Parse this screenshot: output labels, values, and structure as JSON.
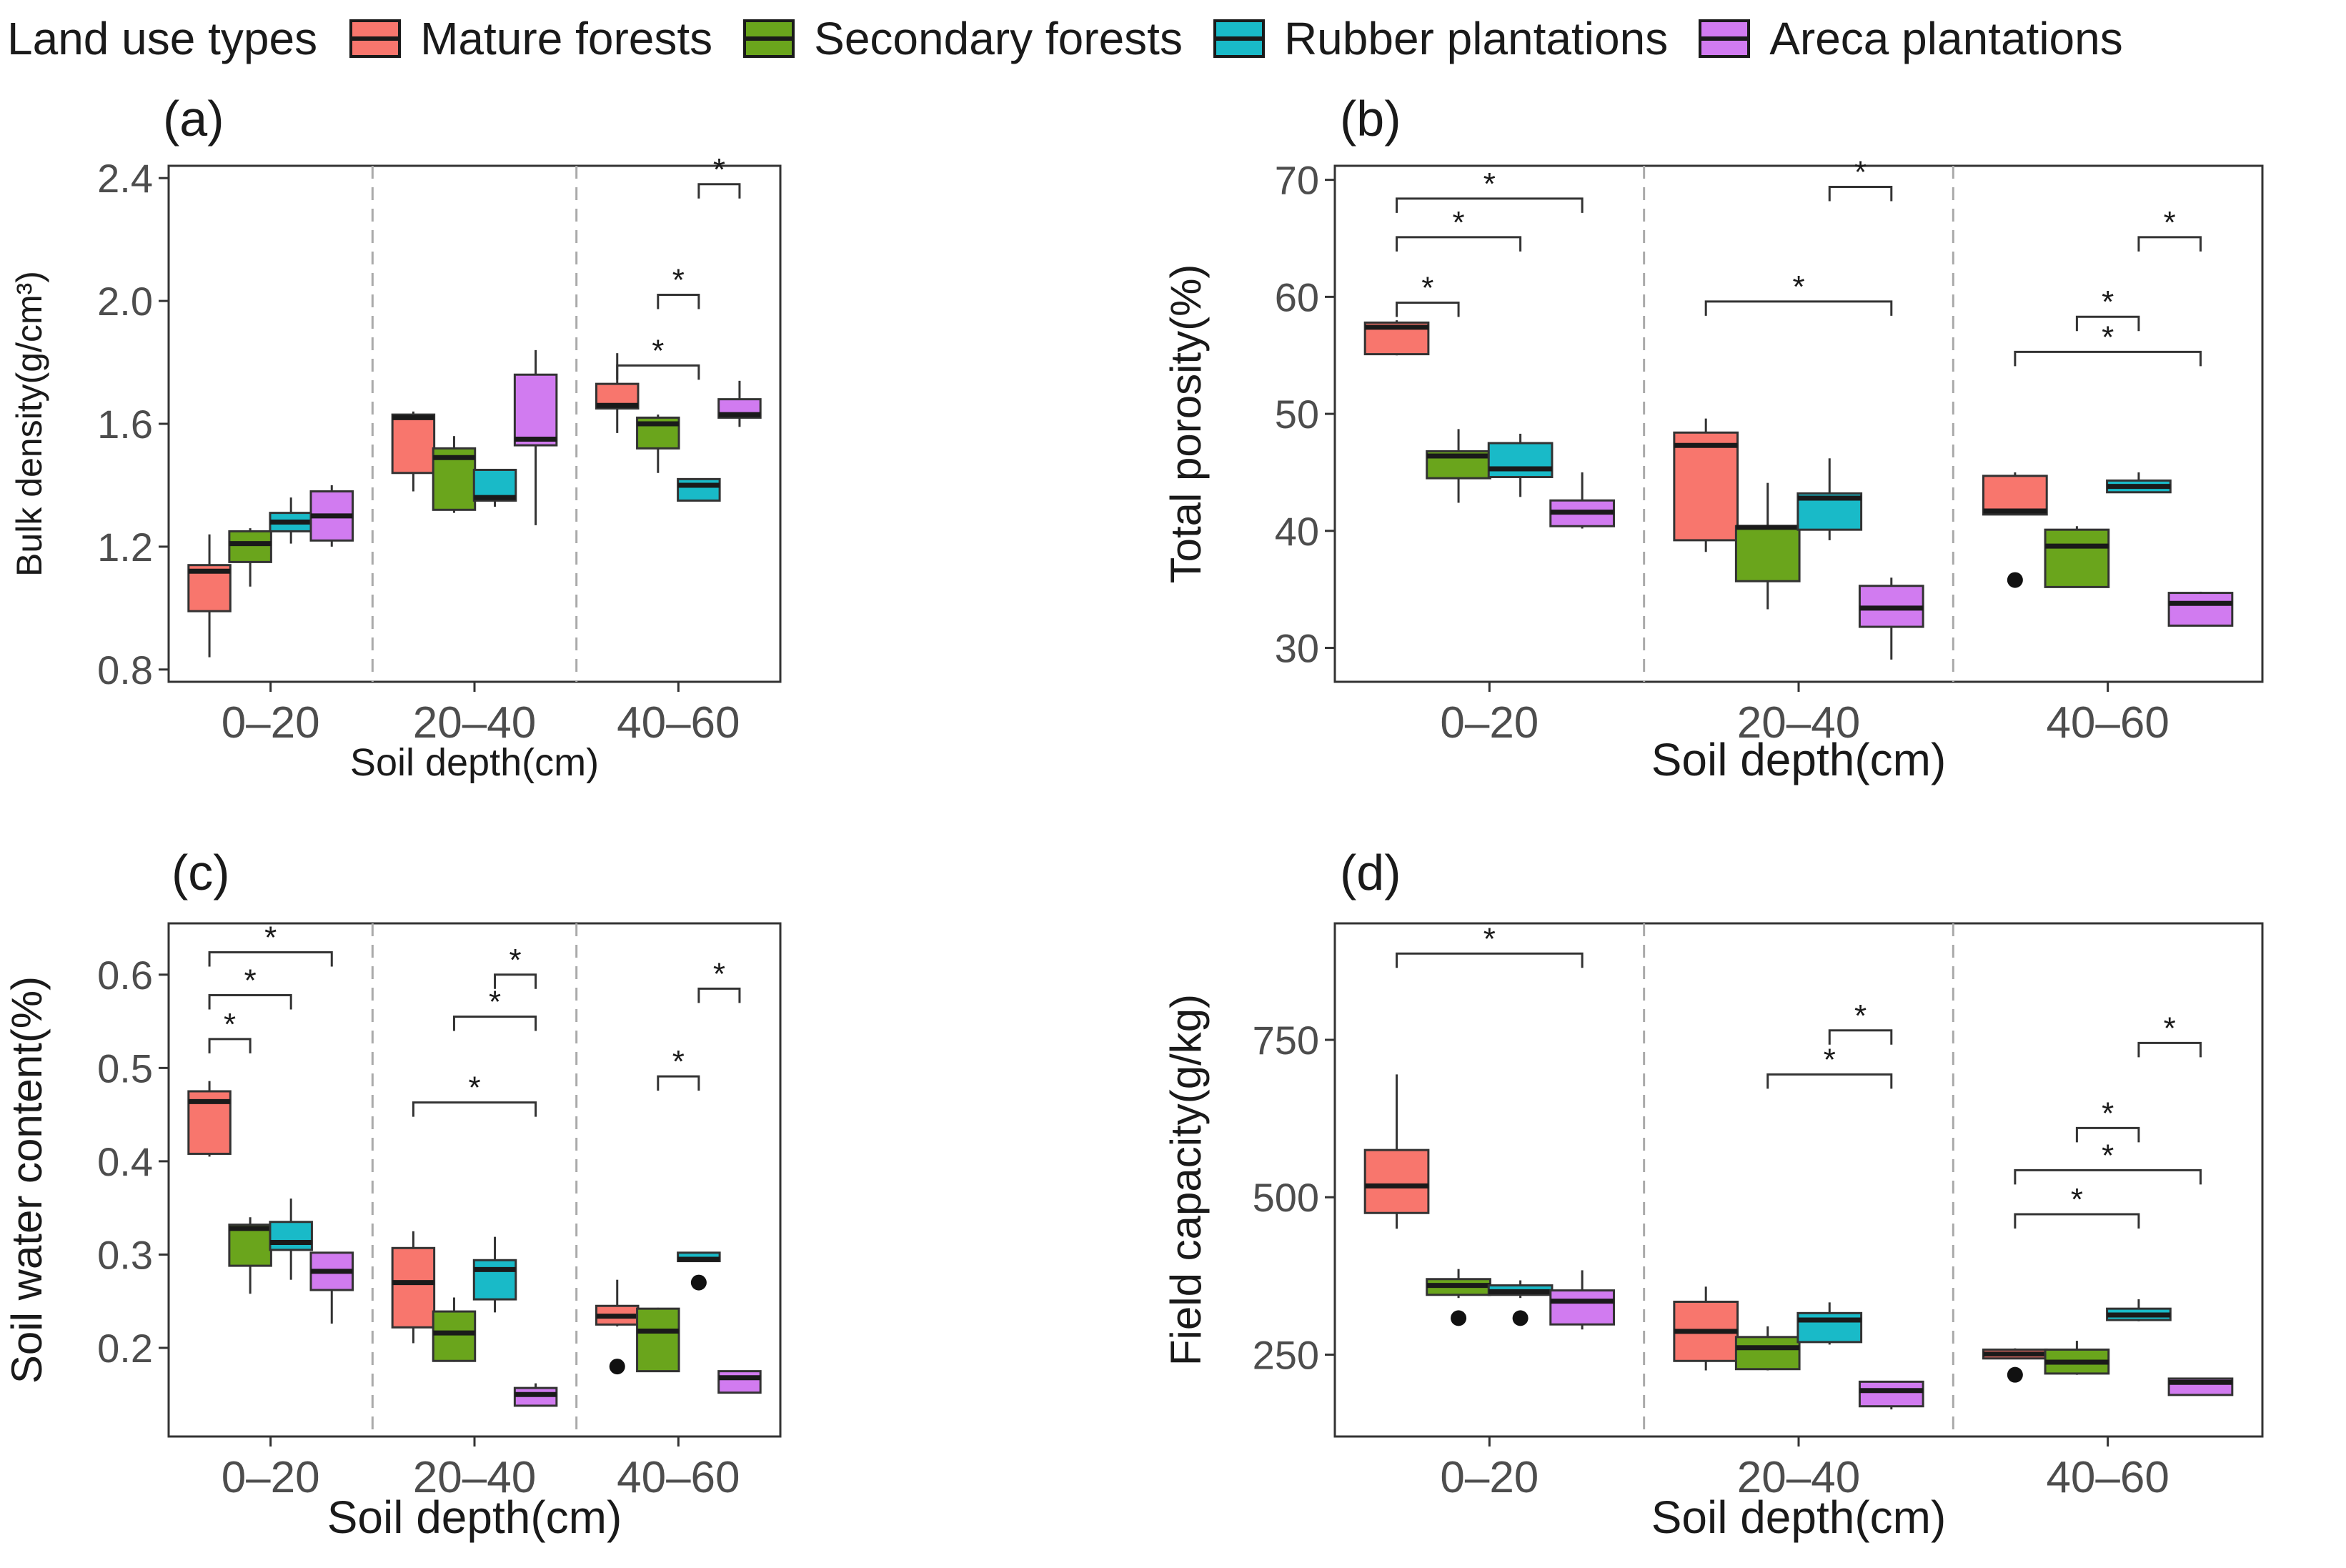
{
  "colors": {
    "mature": "#F8766D",
    "secondary": "#6AA51C",
    "rubber": "#19BAC8",
    "areca": "#D17BF0"
  },
  "legend": {
    "title": "Land use types",
    "items": [
      {
        "label": "Mature forests",
        "color": "#F8766D"
      },
      {
        "label": "Secondary forests",
        "color": "#6AA51C"
      },
      {
        "label": "Rubber plantations",
        "color": "#19BAC8"
      },
      {
        "label": "Areca plantations",
        "color": "#D17BF0"
      }
    ]
  },
  "chart_data": [
    {
      "type": "box",
      "panel_label": "(a)",
      "xlabel": "Soil depth(cm)",
      "ylabel": "Bulk density(g/cm³)",
      "categories": [
        "0–20",
        "20–40",
        "40–60"
      ],
      "yticks": [
        0.8,
        1.2,
        1.6,
        2.0,
        2.4
      ],
      "ytick_labels": [
        "0.8",
        "1.2",
        "1.6",
        "2.0",
        "2.4"
      ],
      "ylim": [
        0.76,
        2.44
      ],
      "series": [
        {
          "name": "Mature forests",
          "boxes": [
            {
              "min": 0.84,
              "q1": 0.99,
              "median": 1.12,
              "q3": 1.14,
              "max": 1.24,
              "outliers": []
            },
            {
              "min": 1.38,
              "q1": 1.44,
              "median": 1.62,
              "q3": 1.63,
              "max": 1.64,
              "outliers": []
            },
            {
              "min": 1.57,
              "q1": 1.65,
              "median": 1.66,
              "q3": 1.73,
              "max": 1.83,
              "outliers": []
            }
          ]
        },
        {
          "name": "Secondary forests",
          "boxes": [
            {
              "min": 1.07,
              "q1": 1.15,
              "median": 1.21,
              "q3": 1.25,
              "max": 1.26,
              "outliers": []
            },
            {
              "min": 1.31,
              "q1": 1.32,
              "median": 1.49,
              "q3": 1.52,
              "max": 1.56,
              "outliers": []
            },
            {
              "min": 1.44,
              "q1": 1.52,
              "median": 1.6,
              "q3": 1.62,
              "max": 1.63,
              "outliers": []
            }
          ]
        },
        {
          "name": "Rubber plantations",
          "boxes": [
            {
              "min": 1.21,
              "q1": 1.25,
              "median": 1.28,
              "q3": 1.31,
              "max": 1.36,
              "outliers": []
            },
            {
              "min": 1.33,
              "q1": 1.35,
              "median": 1.36,
              "q3": 1.45,
              "max": 1.45,
              "outliers": []
            },
            {
              "min": 1.35,
              "q1": 1.35,
              "median": 1.4,
              "q3": 1.42,
              "max": 1.42,
              "outliers": []
            }
          ]
        },
        {
          "name": "Areca plantations",
          "boxes": [
            {
              "min": 1.2,
              "q1": 1.22,
              "median": 1.3,
              "q3": 1.38,
              "max": 1.4,
              "outliers": []
            },
            {
              "min": 1.27,
              "q1": 1.53,
              "median": 1.55,
              "q3": 1.76,
              "max": 1.84,
              "outliers": []
            },
            {
              "min": 1.59,
              "q1": 1.62,
              "median": 1.63,
              "q3": 1.68,
              "max": 1.74,
              "outliers": []
            }
          ]
        }
      ],
      "significance": [
        {
          "depth": 2,
          "from": 0,
          "to": 2,
          "y": 1.79,
          "label": "*"
        },
        {
          "depth": 2,
          "from": 1,
          "to": 2,
          "y": 2.02,
          "label": "*"
        },
        {
          "depth": 2,
          "from": 2,
          "to": 3,
          "y": 2.38,
          "label": "*"
        }
      ]
    },
    {
      "type": "box",
      "panel_label": "(b)",
      "xlabel": "Soil depth(cm)",
      "ylabel": "Total porosity(%)",
      "categories": [
        "0–20",
        "20–40",
        "40–60"
      ],
      "yticks": [
        30,
        40,
        50,
        60,
        70
      ],
      "ytick_labels": [
        "30",
        "40",
        "50",
        "60",
        "70"
      ],
      "ylim": [
        27.1,
        71.2
      ],
      "series": [
        {
          "name": "Mature forests",
          "boxes": [
            {
              "min": 55.0,
              "q1": 55.1,
              "median": 57.4,
              "q3": 57.8,
              "max": 58.0,
              "outliers": []
            },
            {
              "min": 38.2,
              "q1": 39.2,
              "median": 47.3,
              "q3": 48.4,
              "max": 49.6,
              "outliers": []
            },
            {
              "min": 41.4,
              "q1": 41.4,
              "median": 41.7,
              "q3": 44.7,
              "max": 45.0,
              "outliers": [
                35.8
              ]
            }
          ]
        },
        {
          "name": "Secondary forests",
          "boxes": [
            {
              "min": 42.4,
              "q1": 44.5,
              "median": 46.4,
              "q3": 46.8,
              "max": 48.7,
              "outliers": []
            },
            {
              "min": 33.3,
              "q1": 35.7,
              "median": 40.3,
              "q3": 40.4,
              "max": 44.1,
              "outliers": []
            },
            {
              "min": 35.2,
              "q1": 35.2,
              "median": 38.7,
              "q3": 40.1,
              "max": 40.4,
              "outliers": []
            }
          ]
        },
        {
          "name": "Rubber plantations",
          "boxes": [
            {
              "min": 42.9,
              "q1": 44.6,
              "median": 45.3,
              "q3": 47.5,
              "max": 48.3,
              "outliers": []
            },
            {
              "min": 39.2,
              "q1": 40.1,
              "median": 42.8,
              "q3": 43.2,
              "max": 46.2,
              "outliers": []
            },
            {
              "min": 43.3,
              "q1": 43.3,
              "median": 43.8,
              "q3": 44.3,
              "max": 45.0,
              "outliers": []
            }
          ]
        },
        {
          "name": "Areca plantations",
          "boxes": [
            {
              "min": 40.2,
              "q1": 40.4,
              "median": 41.6,
              "q3": 42.6,
              "max": 45.0,
              "outliers": []
            },
            {
              "min": 29.0,
              "q1": 31.8,
              "median": 33.4,
              "q3": 35.3,
              "max": 36.0,
              "outliers": []
            },
            {
              "min": 31.9,
              "q1": 31.9,
              "median": 33.8,
              "q3": 34.7,
              "max": 34.8,
              "outliers": []
            }
          ]
        }
      ],
      "significance": [
        {
          "depth": 0,
          "from": 0,
          "to": 1,
          "y": 59.5,
          "label": "*"
        },
        {
          "depth": 0,
          "from": 0,
          "to": 2,
          "y": 65.1,
          "label": "*"
        },
        {
          "depth": 0,
          "from": 0,
          "to": 3,
          "y": 68.4,
          "label": "*"
        },
        {
          "depth": 1,
          "from": 2,
          "to": 3,
          "y": 69.4,
          "label": "*"
        },
        {
          "depth": 1,
          "from": 0,
          "to": 3,
          "y": 59.6,
          "label": "*"
        },
        {
          "depth": 2,
          "from": 2,
          "to": 3,
          "y": 65.1,
          "label": "*"
        },
        {
          "depth": 2,
          "from": 1,
          "to": 2,
          "y": 58.3,
          "label": "*"
        },
        {
          "depth": 2,
          "from": 0,
          "to": 3,
          "y": 55.3,
          "label": "*"
        }
      ]
    },
    {
      "type": "box",
      "panel_label": "(c)",
      "xlabel": "Soil depth(cm)",
      "ylabel": "Soil water content(%)",
      "categories": [
        "0–20",
        "20–40",
        "40–60"
      ],
      "yticks": [
        0.2,
        0.3,
        0.4,
        0.5,
        0.6
      ],
      "ytick_labels": [
        "0.2",
        "0.3",
        "0.4",
        "0.5",
        "0.6"
      ],
      "ylim": [
        0.105,
        0.655
      ],
      "series": [
        {
          "name": "Mature forests",
          "boxes": [
            {
              "min": 0.405,
              "q1": 0.408,
              "median": 0.464,
              "q3": 0.475,
              "max": 0.486,
              "outliers": []
            },
            {
              "min": 0.205,
              "q1": 0.222,
              "median": 0.27,
              "q3": 0.307,
              "max": 0.325,
              "outliers": []
            },
            {
              "min": 0.223,
              "q1": 0.225,
              "median": 0.234,
              "q3": 0.245,
              "max": 0.273,
              "outliers": [
                0.18
              ]
            }
          ]
        },
        {
          "name": "Secondary forests",
          "boxes": [
            {
              "min": 0.258,
              "q1": 0.288,
              "median": 0.328,
              "q3": 0.332,
              "max": 0.34,
              "outliers": []
            },
            {
              "min": 0.185,
              "q1": 0.186,
              "median": 0.216,
              "q3": 0.239,
              "max": 0.254,
              "outliers": []
            },
            {
              "min": 0.175,
              "q1": 0.175,
              "median": 0.218,
              "q3": 0.242,
              "max": 0.243,
              "outliers": []
            }
          ]
        },
        {
          "name": "Rubber plantations",
          "boxes": [
            {
              "min": 0.273,
              "q1": 0.305,
              "median": 0.313,
              "q3": 0.335,
              "max": 0.36,
              "outliers": []
            },
            {
              "min": 0.238,
              "q1": 0.252,
              "median": 0.284,
              "q3": 0.294,
              "max": 0.319,
              "outliers": []
            },
            {
              "min": 0.293,
              "q1": 0.293,
              "median": 0.295,
              "q3": 0.302,
              "max": 0.303,
              "outliers": [
                0.27
              ]
            }
          ]
        },
        {
          "name": "Areca plantations",
          "boxes": [
            {
              "min": 0.226,
              "q1": 0.262,
              "median": 0.282,
              "q3": 0.302,
              "max": 0.303,
              "outliers": []
            },
            {
              "min": 0.138,
              "q1": 0.138,
              "median": 0.15,
              "q3": 0.157,
              "max": 0.162,
              "outliers": []
            },
            {
              "min": 0.152,
              "q1": 0.152,
              "median": 0.168,
              "q3": 0.175,
              "max": 0.175,
              "outliers": []
            }
          ]
        }
      ],
      "significance": [
        {
          "depth": 0,
          "from": 0,
          "to": 1,
          "y": 0.531,
          "label": "*"
        },
        {
          "depth": 0,
          "from": 0,
          "to": 2,
          "y": 0.578,
          "label": "*"
        },
        {
          "depth": 0,
          "from": 0,
          "to": 3,
          "y": 0.624,
          "label": "*"
        },
        {
          "depth": 1,
          "from": 2,
          "to": 3,
          "y": 0.6,
          "label": "*"
        },
        {
          "depth": 1,
          "from": 1,
          "to": 3,
          "y": 0.555,
          "label": "*"
        },
        {
          "depth": 1,
          "from": 0,
          "to": 3,
          "y": 0.463,
          "label": "*"
        },
        {
          "depth": 2,
          "from": 1,
          "to": 2,
          "y": 0.491,
          "label": "*"
        },
        {
          "depth": 2,
          "from": 2,
          "to": 3,
          "y": 0.585,
          "label": "*"
        }
      ]
    },
    {
      "type": "box",
      "panel_label": "(d)",
      "xlabel": "Soil depth(cm)",
      "ylabel": "Field  capacity(g/kg)",
      "categories": [
        "0–20",
        "20–40",
        "40–60"
      ],
      "yticks": [
        250,
        500,
        750
      ],
      "ytick_labels": [
        "250",
        "500",
        "750"
      ],
      "ylim": [
        120,
        935
      ],
      "series": [
        {
          "name": "Mature forests",
          "boxes": [
            {
              "min": 450,
              "q1": 475,
              "median": 518,
              "q3": 575,
              "max": 695,
              "outliers": []
            },
            {
              "min": 225,
              "q1": 240,
              "median": 287,
              "q3": 334,
              "max": 358,
              "outliers": []
            },
            {
              "min": 244,
              "q1": 244,
              "median": 251,
              "q3": 258,
              "max": 260,
              "outliers": [
                218
              ]
            }
          ]
        },
        {
          "name": "Secondary forests",
          "boxes": [
            {
              "min": 340,
              "q1": 345,
              "median": 360,
              "q3": 370,
              "max": 386,
              "outliers": [
                308
              ]
            },
            {
              "min": 225,
              "q1": 227,
              "median": 261,
              "q3": 278,
              "max": 295,
              "outliers": []
            },
            {
              "min": 218,
              "q1": 220,
              "median": 238,
              "q3": 258,
              "max": 272,
              "outliers": []
            }
          ]
        },
        {
          "name": "Rubber plantations",
          "boxes": [
            {
              "min": 340,
              "q1": 345,
              "median": 350,
              "q3": 360,
              "max": 368,
              "outliers": [
                308
              ]
            },
            {
              "min": 266,
              "q1": 270,
              "median": 305,
              "q3": 316,
              "max": 333,
              "outliers": []
            },
            {
              "min": 303,
              "q1": 305,
              "median": 313,
              "q3": 323,
              "max": 338,
              "outliers": []
            }
          ]
        },
        {
          "name": "Areca plantations",
          "boxes": [
            {
              "min": 290,
              "q1": 298,
              "median": 335,
              "q3": 352,
              "max": 384,
              "outliers": []
            },
            {
              "min": 163,
              "q1": 168,
              "median": 193,
              "q3": 207,
              "max": 207,
              "outliers": []
            },
            {
              "min": 185,
              "q1": 186,
              "median": 206,
              "q3": 212,
              "max": 213,
              "outliers": []
            }
          ]
        }
      ],
      "significance": [
        {
          "depth": 0,
          "from": 0,
          "to": 3,
          "y": 887,
          "label": "*"
        },
        {
          "depth": 1,
          "from": 2,
          "to": 3,
          "y": 765,
          "label": "*"
        },
        {
          "depth": 1,
          "from": 1,
          "to": 3,
          "y": 695,
          "label": "*"
        },
        {
          "depth": 2,
          "from": 2,
          "to": 3,
          "y": 745,
          "label": "*"
        },
        {
          "depth": 2,
          "from": 1,
          "to": 2,
          "y": 610,
          "label": "*"
        },
        {
          "depth": 2,
          "from": 0,
          "to": 3,
          "y": 543,
          "label": "*"
        },
        {
          "depth": 2,
          "from": 0,
          "to": 2,
          "y": 473,
          "label": "*"
        }
      ]
    }
  ]
}
